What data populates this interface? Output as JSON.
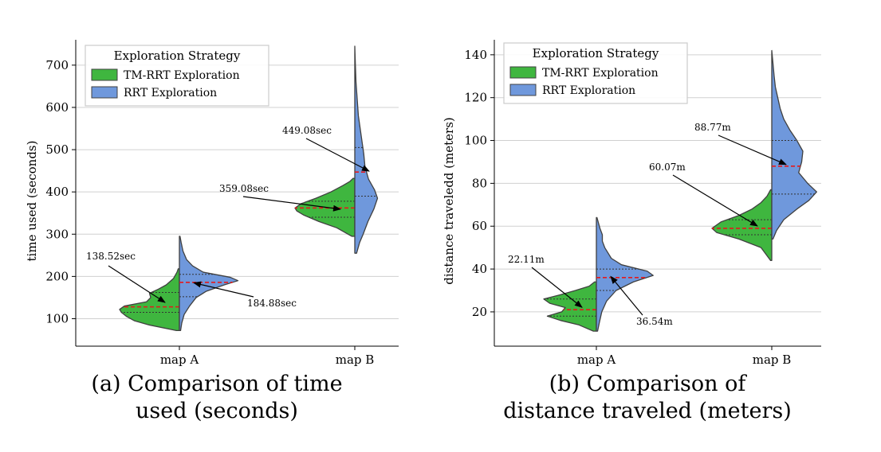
{
  "chart_data": [
    {
      "type": "violin",
      "title": "",
      "caption_lines": [
        "(a) Comparison of time",
        "used (seconds)"
      ],
      "xlabel": "",
      "ylabel": "time used (seconds)",
      "ylim": [
        35,
        760
      ],
      "yticks": [
        100,
        200,
        300,
        400,
        500,
        600,
        700
      ],
      "categories": [
        "map A",
        "map B"
      ],
      "legend": {
        "title": "Exploration Strategy",
        "placement": "top-left",
        "entries": [
          "TM-RRT Exploration",
          "RRT Exploration"
        ]
      },
      "grid": "horizontal",
      "series": [
        {
          "name": "TM-RRT Exploration",
          "color": "#3fb63f",
          "side": "left",
          "groups": [
            {
              "category": "map A",
              "ymin": 72,
              "ymax": 218,
              "q1": 115,
              "median": 128,
              "q3": 162,
              "density": [
                [
                  72,
                  0.05
                ],
                [
                  85,
                  0.5
                ],
                [
                  95,
                  0.75
                ],
                [
                  105,
                  0.88
                ],
                [
                  115,
                  0.97
                ],
                [
                  122,
                  1.0
                ],
                [
                  130,
                  0.92
                ],
                [
                  140,
                  0.55
                ],
                [
                  150,
                  0.48
                ],
                [
                  160,
                  0.5
                ],
                [
                  170,
                  0.35
                ],
                [
                  180,
                  0.22
                ],
                [
                  195,
                  0.1
                ],
                [
                  210,
                  0.04
                ],
                [
                  218,
                  0.02
                ]
              ]
            },
            {
              "category": "map B",
              "ymin": 295,
              "ymax": 432,
              "q1": 340,
              "median": 362,
              "q3": 378,
              "density": [
                [
                  295,
                  0.05
                ],
                [
                  315,
                  0.3
                ],
                [
                  330,
                  0.6
                ],
                [
                  345,
                  0.85
                ],
                [
                  355,
                  0.97
                ],
                [
                  362,
                  1.0
                ],
                [
                  372,
                  0.9
                ],
                [
                  385,
                  0.65
                ],
                [
                  400,
                  0.4
                ],
                [
                  415,
                  0.2
                ],
                [
                  425,
                  0.08
                ],
                [
                  432,
                  0.03
                ]
              ]
            }
          ]
        },
        {
          "name": "RRT Exploration",
          "color": "#6f98dc",
          "side": "right",
          "groups": [
            {
              "category": "map A",
              "ymin": 72,
              "ymax": 295,
              "q1": 152,
              "median": 186,
              "q3": 205,
              "density": [
                [
                  72,
                  0.02
                ],
                [
                  90,
                  0.04
                ],
                [
                  110,
                  0.08
                ],
                [
                  130,
                  0.17
                ],
                [
                  150,
                  0.28
                ],
                [
                  165,
                  0.45
                ],
                [
                  180,
                  0.75
                ],
                [
                  190,
                  0.98
                ],
                [
                  198,
                  0.85
                ],
                [
                  210,
                  0.4
                ],
                [
                  225,
                  0.22
                ],
                [
                  240,
                  0.12
                ],
                [
                  260,
                  0.06
                ],
                [
                  280,
                  0.03
                ],
                [
                  295,
                  0.01
                ]
              ]
            },
            {
              "category": "map B",
              "ymin": 255,
              "ymax": 745,
              "q1": 390,
              "median": 447,
              "q3": 505,
              "density": [
                [
                  255,
                  0.03
                ],
                [
                  280,
                  0.08
                ],
                [
                  300,
                  0.14
                ],
                [
                  330,
                  0.22
                ],
                [
                  360,
                  0.32
                ],
                [
                  385,
                  0.38
                ],
                [
                  405,
                  0.33
                ],
                [
                  430,
                  0.23
                ],
                [
                  460,
                  0.17
                ],
                [
                  490,
                  0.15
                ],
                [
                  520,
                  0.12
                ],
                [
                  550,
                  0.09
                ],
                [
                  580,
                  0.06
                ],
                [
                  620,
                  0.04
                ],
                [
                  660,
                  0.02
                ],
                [
                  700,
                  0.01
                ],
                [
                  745,
                  0.0
                ]
              ]
            }
          ]
        }
      ],
      "annotations": [
        {
          "text": "138.52sec",
          "value": 138.52,
          "category": "map A",
          "series": "TM-RRT Exploration"
        },
        {
          "text": "184.88sec",
          "value": 184.88,
          "category": "map A",
          "series": "RRT Exploration"
        },
        {
          "text": "359.08sec",
          "value": 359.08,
          "category": "map B",
          "series": "TM-RRT Exploration"
        },
        {
          "text": "449.08sec",
          "value": 449.08,
          "category": "map B",
          "series": "RRT Exploration"
        }
      ]
    },
    {
      "type": "violin",
      "title": "",
      "caption_lines": [
        "(b) Comparison of",
        "distance traveled (meters)"
      ],
      "xlabel": "",
      "ylabel": "distance traveledd (meters)",
      "ylim": [
        4,
        147
      ],
      "yticks": [
        20,
        40,
        60,
        80,
        100,
        120,
        140
      ],
      "categories": [
        "map A",
        "map B"
      ],
      "legend": {
        "title": "Exploration Strategy",
        "placement": "top-left",
        "entries": [
          "TM-RRT Exploration",
          "RRT Exploration"
        ]
      },
      "grid": "horizontal",
      "series": [
        {
          "name": "TM-RRT Exploration",
          "color": "#3fb63f",
          "side": "left",
          "groups": [
            {
              "category": "map A",
              "ymin": 11,
              "ymax": 34,
              "q1": 18,
              "median": 21,
              "q3": 26,
              "density": [
                [
                  11,
                  0.05
                ],
                [
                  14,
                  0.3
                ],
                [
                  16,
                  0.6
                ],
                [
                  18,
                  0.82
                ],
                [
                  20,
                  0.58
                ],
                [
                  22,
                  0.52
                ],
                [
                  24,
                  0.78
                ],
                [
                  26,
                  0.88
                ],
                [
                  28,
                  0.6
                ],
                [
                  30,
                  0.35
                ],
                [
                  32,
                  0.12
                ],
                [
                  34,
                  0.03
                ]
              ]
            },
            {
              "category": "map B",
              "ymin": 44,
              "ymax": 77,
              "q1": 56,
              "median": 59,
              "q3": 63,
              "density": [
                [
                  44,
                  0.02
                ],
                [
                  50,
                  0.18
                ],
                [
                  54,
                  0.55
                ],
                [
                  57,
                  0.92
                ],
                [
                  59,
                  1.0
                ],
                [
                  62,
                  0.85
                ],
                [
                  65,
                  0.55
                ],
                [
                  68,
                  0.33
                ],
                [
                  71,
                  0.18
                ],
                [
                  74,
                  0.08
                ],
                [
                  77,
                  0.02
                ]
              ]
            }
          ]
        },
        {
          "name": "RRT Exploration",
          "color": "#6f98dc",
          "side": "right",
          "groups": [
            {
              "category": "map A",
              "ymin": 11,
              "ymax": 64,
              "q1": 30,
              "median": 36,
              "q3": 40,
              "density": [
                [
                  11,
                  0.02
                ],
                [
                  15,
                  0.05
                ],
                [
                  20,
                  0.09
                ],
                [
                  25,
                  0.17
                ],
                [
                  30,
                  0.33
                ],
                [
                  34,
                  0.62
                ],
                [
                  37,
                  0.95
                ],
                [
                  39,
                  0.85
                ],
                [
                  42,
                  0.42
                ],
                [
                  45,
                  0.25
                ],
                [
                  50,
                  0.14
                ],
                [
                  53,
                  0.1
                ],
                [
                  56,
                  0.1
                ],
                [
                  59,
                  0.06
                ],
                [
                  62,
                  0.03
                ],
                [
                  64,
                  0.01
                ]
              ]
            },
            {
              "category": "map B",
              "ymin": 54,
              "ymax": 142,
              "q1": 75,
              "median": 88,
              "q3": 100,
              "density": [
                [
                  54,
                  0.02
                ],
                [
                  58,
                  0.08
                ],
                [
                  63,
                  0.2
                ],
                [
                  68,
                  0.42
                ],
                [
                  72,
                  0.62
                ],
                [
                  76,
                  0.75
                ],
                [
                  80,
                  0.6
                ],
                [
                  85,
                  0.45
                ],
                [
                  90,
                  0.5
                ],
                [
                  95,
                  0.52
                ],
                [
                  100,
                  0.42
                ],
                [
                  105,
                  0.3
                ],
                [
                  110,
                  0.2
                ],
                [
                  115,
                  0.14
                ],
                [
                  120,
                  0.1
                ],
                [
                  125,
                  0.06
                ],
                [
                  130,
                  0.04
                ],
                [
                  136,
                  0.02
                ],
                [
                  142,
                  0.0
                ]
              ]
            }
          ]
        }
      ],
      "annotations": [
        {
          "text": "22.11m",
          "value": 22.11,
          "category": "map A",
          "series": "TM-RRT Exploration"
        },
        {
          "text": "36.54m",
          "value": 36.54,
          "category": "map A",
          "series": "RRT Exploration"
        },
        {
          "text": "60.07m",
          "value": 60.07,
          "category": "map B",
          "series": "TM-RRT Exploration"
        },
        {
          "text": "88.77m",
          "value": 88.77,
          "category": "map B",
          "series": "RRT Exploration"
        }
      ]
    }
  ]
}
